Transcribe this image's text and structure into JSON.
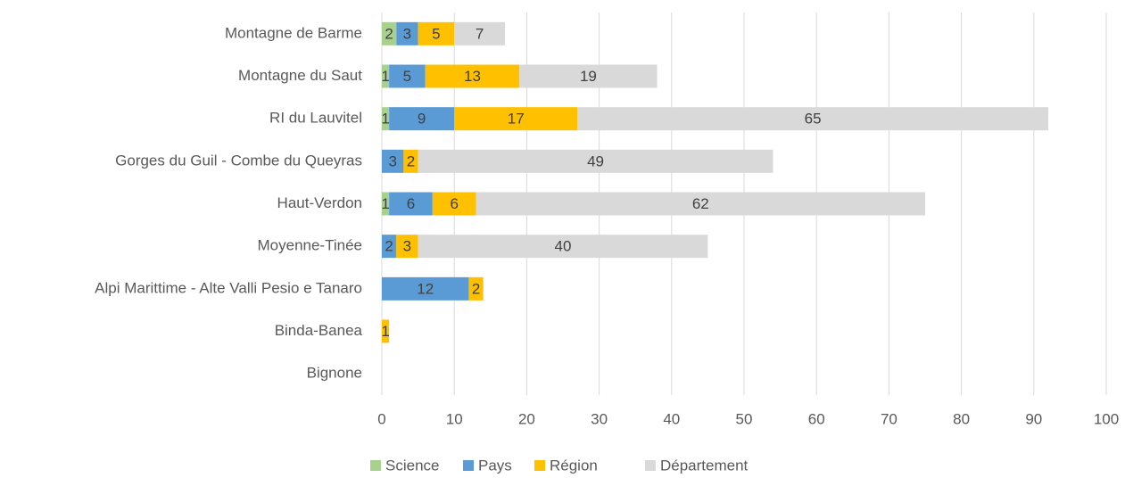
{
  "chart_data": {
    "type": "stacked_barh",
    "categories": [
      "Montagne de Barme",
      "Montagne du Saut",
      "RI du Lauvitel",
      "Gorges du Guil - Combe du Queyras",
      "Haut-Verdon",
      "Moyenne-Tinée",
      "Alpi Marittime - Alte Valli Pesio e Tanaro",
      "Binda-Banea",
      "Bignone"
    ],
    "series": [
      {
        "name": "Science",
        "color": "#a9d18e",
        "values": [
          2,
          1,
          1,
          null,
          1,
          null,
          null,
          null,
          null
        ]
      },
      {
        "name": "Pays",
        "color": "#5b9bd5",
        "values": [
          3,
          5,
          9,
          3,
          6,
          2,
          12,
          null,
          null
        ]
      },
      {
        "name": "Région",
        "color": "#ffc000",
        "values": [
          5,
          13,
          17,
          2,
          6,
          3,
          2,
          1,
          null
        ]
      },
      {
        "name": "Département",
        "color": "#d9d9d9",
        "values": [
          7,
          19,
          65,
          49,
          62,
          40,
          null,
          null,
          null
        ]
      }
    ],
    "xlim": [
      0,
      100
    ],
    "xticks": [
      0,
      10,
      20,
      30,
      40,
      50,
      60,
      70,
      80,
      90,
      100
    ],
    "grid": true,
    "legend": "bottom"
  }
}
